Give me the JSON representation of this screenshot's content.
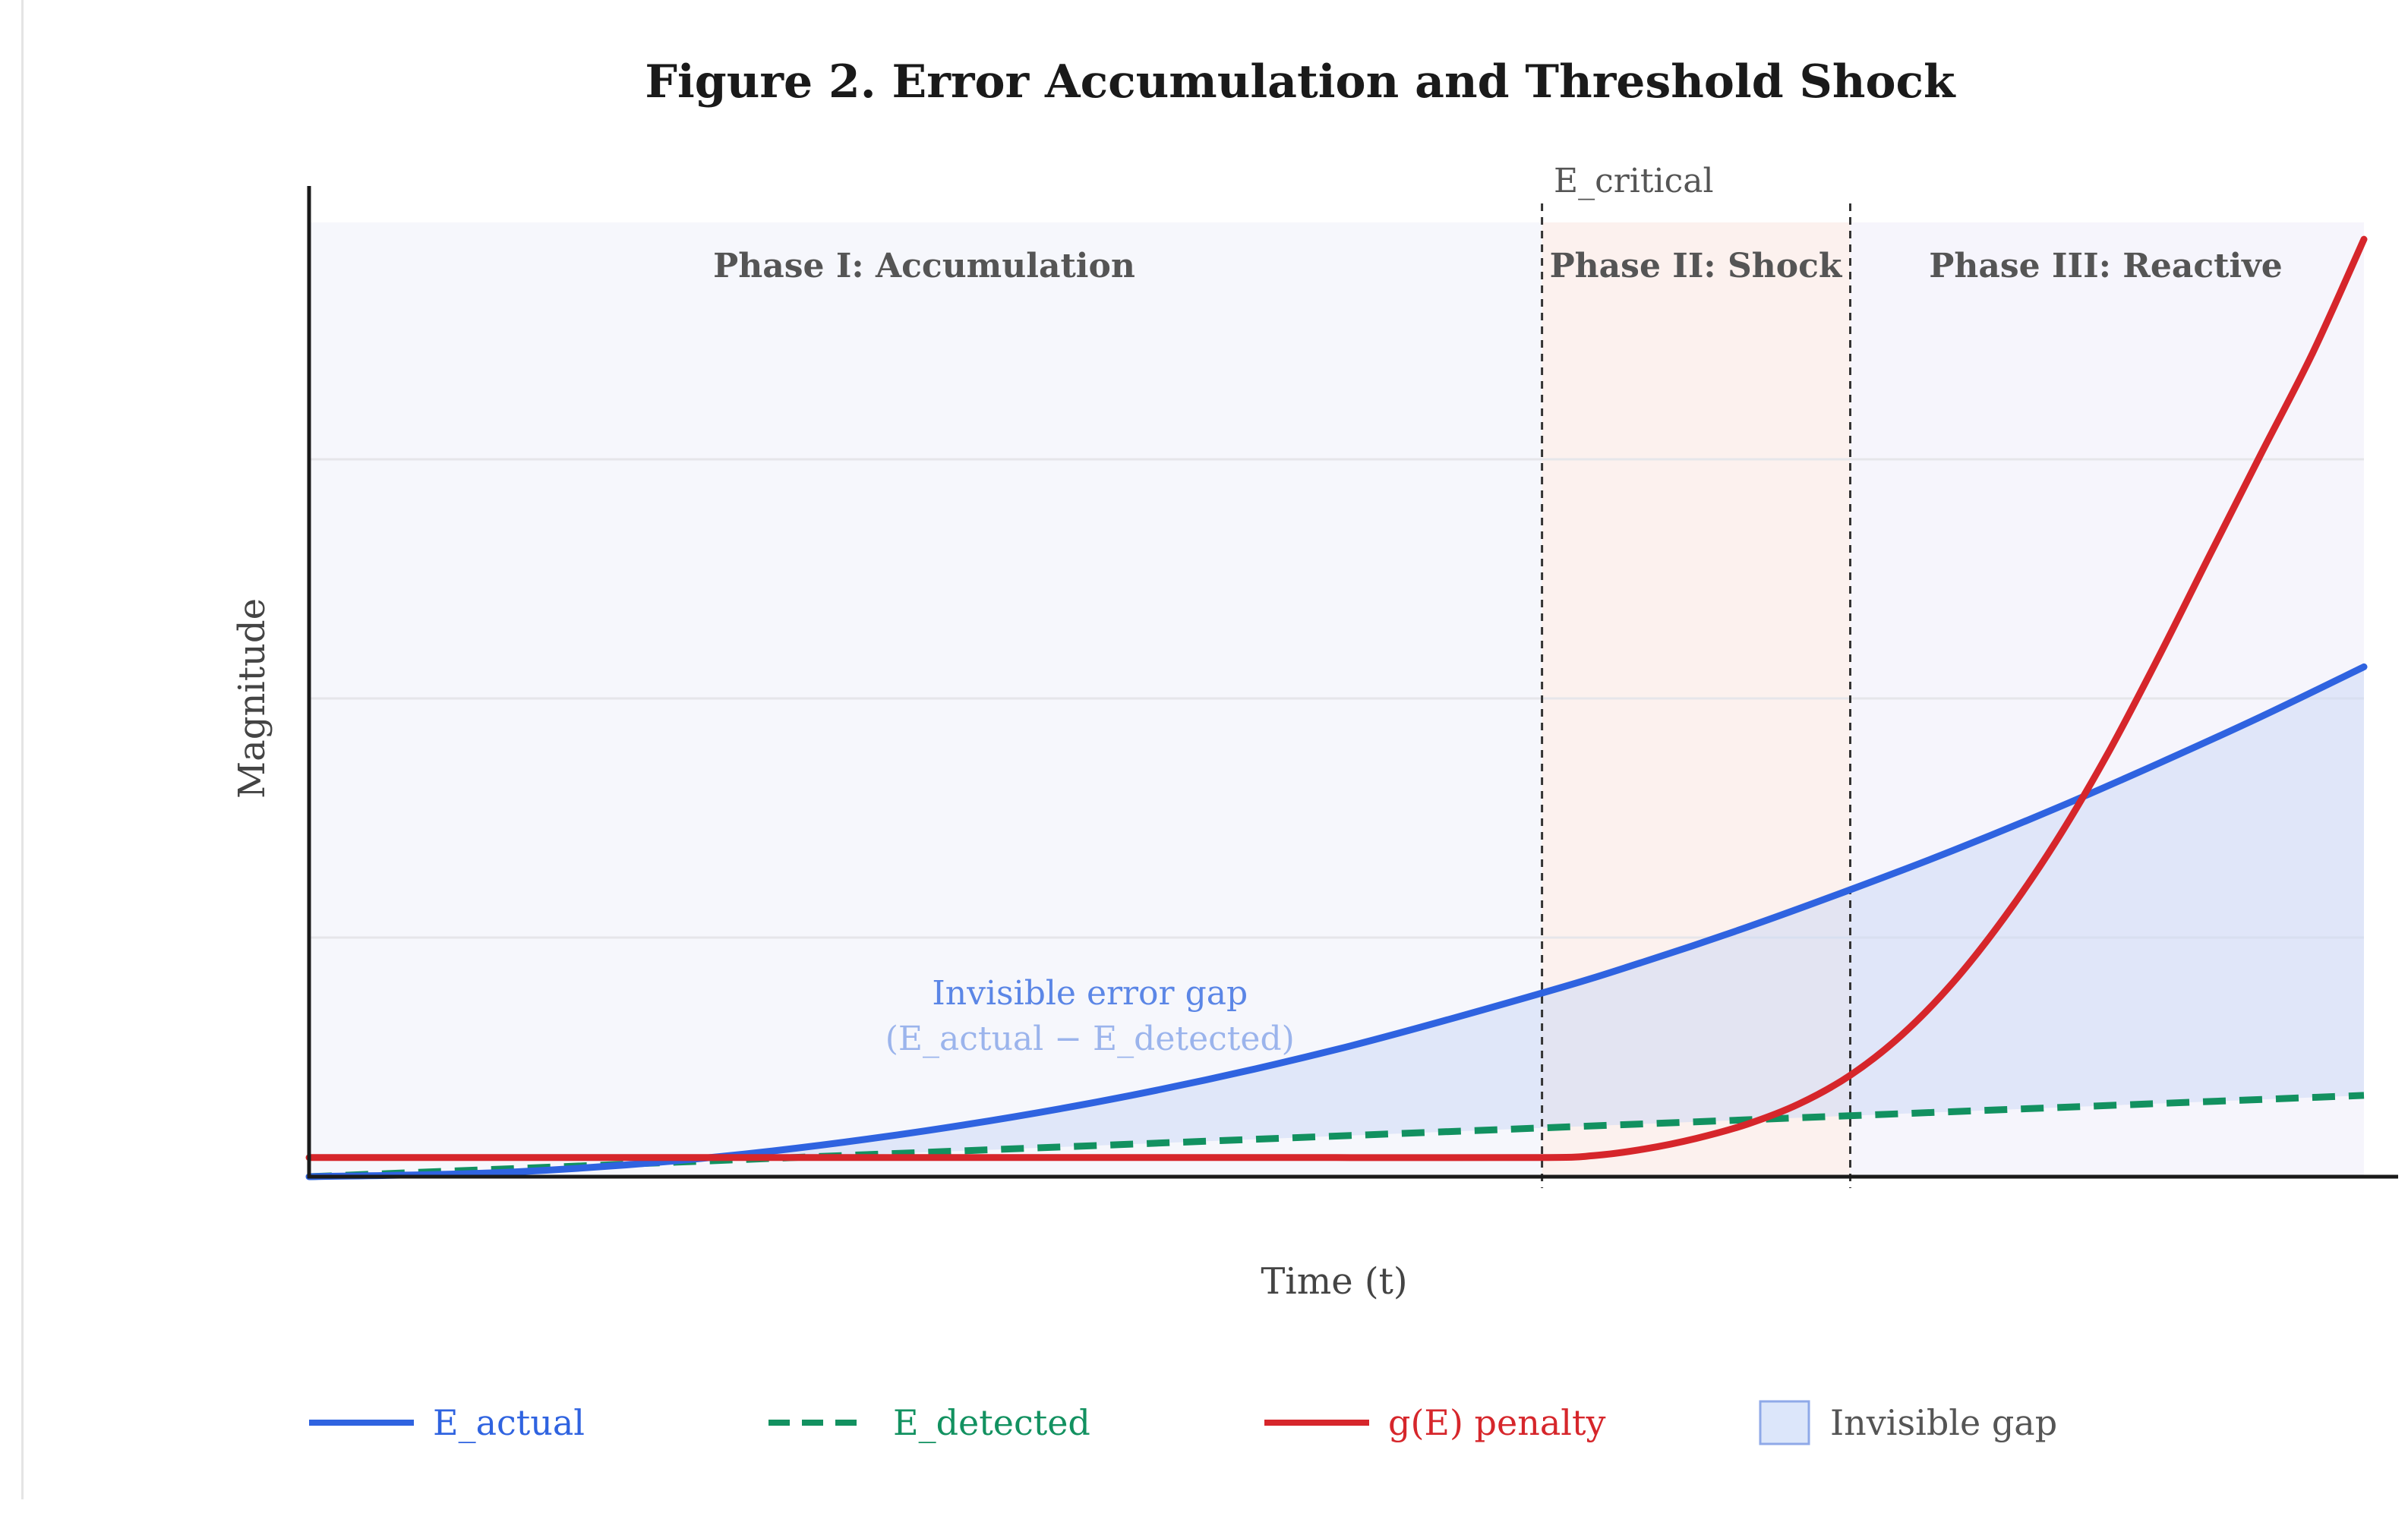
{
  "chart_data": {
    "type": "line",
    "title": "Figure 2. Error Accumulation and Threshold Shock",
    "xlabel": "Time (t)",
    "ylabel": "Magnitude",
    "xlim": [
      0,
      10
    ],
    "ylim": [
      0,
      10
    ],
    "grid": true,
    "x_tick_labels": false,
    "y_tick_labels": false,
    "series": [
      {
        "name": "E_actual",
        "color": "#2f63e0",
        "style": "solid",
        "x": [
          0,
          1,
          2,
          3,
          4,
          5,
          6,
          6.5,
          7,
          7.5,
          8,
          8.5,
          9,
          9.5,
          10
        ],
        "y": [
          0,
          0.05,
          0.21,
          0.48,
          0.85,
          1.33,
          1.92,
          2.25,
          2.61,
          3.0,
          3.41,
          3.85,
          4.32,
          4.81,
          5.33
        ]
      },
      {
        "name": "E_detected",
        "color": "#129160",
        "style": "dashed",
        "x": [
          0,
          10
        ],
        "y": [
          0,
          0.85
        ]
      },
      {
        "name": "g(E) penalty",
        "color": "#d6262b",
        "style": "solid",
        "x": [
          0,
          1,
          2,
          3,
          4,
          5,
          6,
          6.25,
          6.5,
          6.75,
          7,
          7.25,
          7.5,
          7.75,
          8,
          8.25,
          8.5,
          8.75,
          9,
          9.25,
          9.5,
          9.75,
          10
        ],
        "y": [
          0.2,
          0.2,
          0.2,
          0.2,
          0.2,
          0.2,
          0.2,
          0.22,
          0.29,
          0.4,
          0.55,
          0.76,
          1.06,
          1.48,
          2.03,
          2.71,
          3.5,
          4.41,
          5.43,
          6.5,
          7.56,
          8.61,
          9.8
        ]
      }
    ],
    "shaded_gap": {
      "name": "Invisible gap",
      "between": [
        "E_actual",
        "E_detected"
      ],
      "color": "#c9d8f6",
      "label_line1": "Invisible error gap",
      "label_line2": "(E_actual − E_detected)",
      "label_x": 3.8,
      "label_y": 1.8
    },
    "phases": [
      {
        "label": "Phase I: Accumulation",
        "x_start": 0,
        "x_end": 6,
        "color": "#f6f7fc"
      },
      {
        "label": "Phase II: Shock",
        "x_start": 6,
        "x_end": 7.5,
        "color": "#fcf1ee"
      },
      {
        "label": "Phase III: Reactive",
        "x_start": 7.5,
        "x_end": 10,
        "color": "#f6f5fc"
      }
    ],
    "threshold_label": "E_critical",
    "vlines_x": [
      6,
      7.5
    ],
    "legend_position": "bottom",
    "legend": [
      {
        "label": "E_actual",
        "color": "#2f63e0",
        "kind": "line"
      },
      {
        "label": "E_detected",
        "color": "#129160",
        "kind": "dashed"
      },
      {
        "label": "g(E) penalty",
        "color": "#d6262b",
        "kind": "line"
      },
      {
        "label": "Invisible gap",
        "color": "#dce6fa",
        "kind": "box"
      }
    ]
  }
}
